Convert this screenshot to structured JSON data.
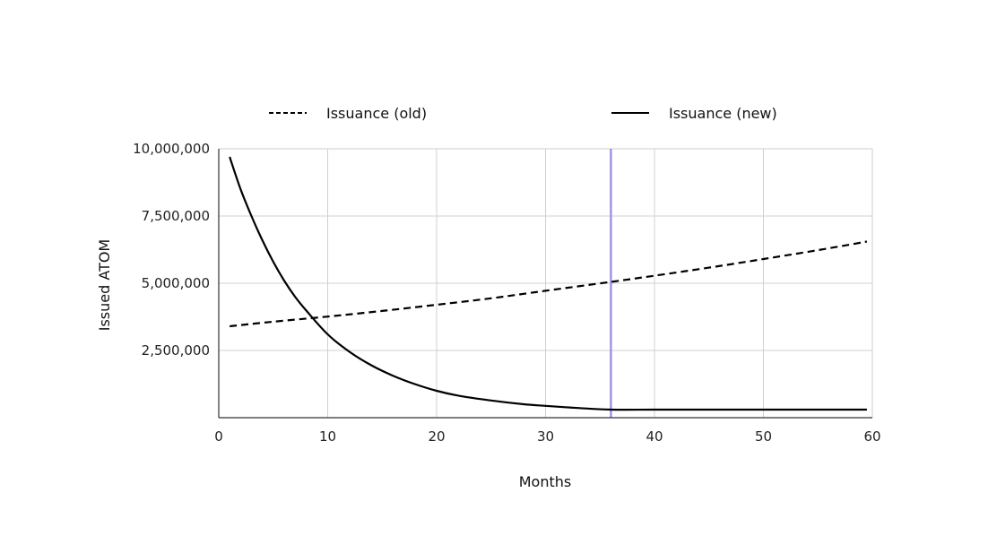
{
  "chart_data": {
    "type": "line",
    "title": "",
    "xlabel": "Months",
    "ylabel": "Issued ATOM",
    "xlim": [
      0,
      60
    ],
    "ylim": [
      0,
      10000000
    ],
    "x_ticks": [
      0,
      10,
      20,
      30,
      40,
      50,
      60
    ],
    "x_tick_labels": [
      "0",
      "10",
      "20",
      "30",
      "40",
      "50",
      "60"
    ],
    "y_ticks": [
      2500000,
      5000000,
      7500000,
      10000000
    ],
    "y_tick_labels": [
      "2,500,000",
      "5,000,000",
      "7,500,000",
      "10,000,000"
    ],
    "grid": true,
    "legend_position": "top",
    "series": [
      {
        "name": "Issuance (old)",
        "style": "dashed",
        "color": "#000000",
        "x": [
          1,
          5,
          10,
          15,
          20,
          25,
          30,
          36,
          40,
          45,
          50,
          55,
          59.5
        ],
        "values": [
          3400000,
          3570000,
          3760000,
          3970000,
          4200000,
          4440000,
          4720000,
          5050000,
          5280000,
          5580000,
          5900000,
          6230000,
          6550000
        ]
      },
      {
        "name": "Issuance (new)",
        "style": "solid",
        "color": "#000000",
        "x": [
          1,
          2,
          3,
          4,
          5,
          6,
          7,
          8,
          10,
          12,
          14,
          16,
          18,
          20,
          22,
          25,
          28,
          30,
          33,
          36,
          40,
          45,
          50,
          55,
          59.5
        ],
        "values": [
          9700000,
          8500000,
          7500000,
          6600000,
          5800000,
          5100000,
          4500000,
          4000000,
          3100000,
          2450000,
          1950000,
          1560000,
          1250000,
          1000000,
          820000,
          640000,
          500000,
          440000,
          360000,
          300000,
          300000,
          300000,
          300000,
          300000,
          300000
        ]
      }
    ],
    "vertical_marker": {
      "x": 36,
      "color": "#9b87e0"
    }
  }
}
